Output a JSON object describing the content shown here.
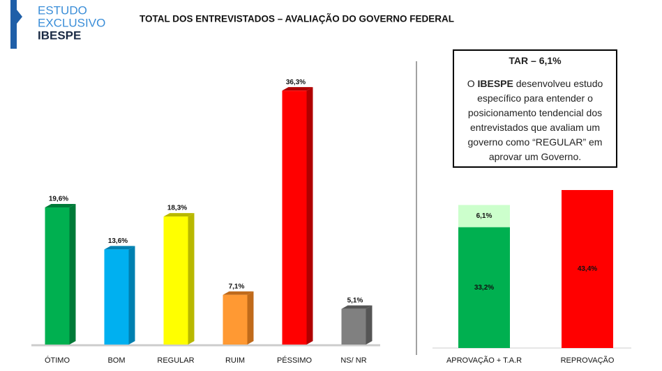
{
  "header": {
    "brand_line1": "ESTUDO",
    "brand_line2": "EXCLUSIVO",
    "brand_name": "IBESPE",
    "title": "TOTAL DOS ENTREVISTADOS – AVALIAÇÃO DO GOVERNO FEDERAL"
  },
  "box": {
    "title": "TAR – 6,1%",
    "text_start": "O",
    "text_bold": "IBESPE",
    "text_end": "desenvolveu estudo específico para entender o posicionamento tendencial dos entrevistados que avaliam um governo como “REGULAR” em aprovar um Governo."
  },
  "chart_data": [
    {
      "type": "bar",
      "categories": [
        "ÓTIMO",
        "BOM",
        "REGULAR",
        "RUIM",
        "PÉSSIMO",
        "NS/ NR"
      ],
      "values": [
        19.6,
        13.6,
        18.3,
        7.1,
        36.3,
        5.1
      ],
      "value_labels": [
        "19,6%",
        "13,6%",
        "18,3%",
        "7,1%",
        "36,3%",
        "5,1%"
      ],
      "colors": [
        "#00b050",
        "#00b0f0",
        "#ffff00",
        "#ff9933",
        "#ff0000",
        "#808080"
      ],
      "side_colors": [
        "#007a38",
        "#0080b0",
        "#b8b800",
        "#c06a1a",
        "#b00000",
        "#555555"
      ]
    },
    {
      "type": "stacked_bar",
      "categories": [
        "APROVAÇÃO + T.A.R",
        "REPROVAÇÃO"
      ],
      "series": [
        {
          "values": [
            33.2,
            43.4
          ],
          "value_labels": [
            "33,2%",
            "43,4%"
          ],
          "colors": [
            "#00b050",
            "#ff0000"
          ]
        },
        {
          "values": [
            6.1,
            null
          ],
          "value_labels": [
            "6,1%",
            null
          ],
          "colors": [
            "#ccffcc",
            null
          ]
        }
      ]
    }
  ]
}
